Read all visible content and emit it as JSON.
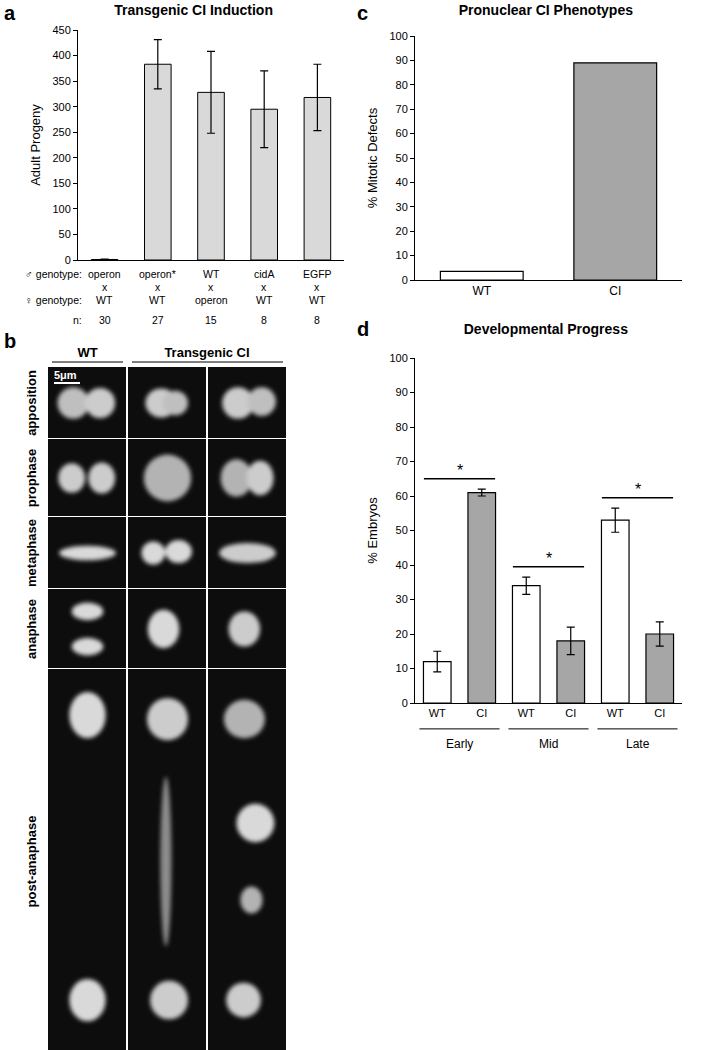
{
  "chart_data": [
    {
      "panel": "a",
      "type": "bar",
      "title": "Transgenic CI Induction",
      "y_label": "Adult Progeny",
      "categories": [
        "operon",
        "operon*",
        "WT",
        "cidA",
        "EGFP"
      ],
      "female_genotype": [
        "WT",
        "WT",
        "operon",
        "WT",
        "WT"
      ],
      "cross": "x",
      "n": [
        30,
        27,
        15,
        8,
        8
      ],
      "row_labels": [
        "♂ genotype:",
        "♀ genotype:",
        "n:"
      ],
      "values": [
        1,
        383,
        328,
        295,
        318
      ],
      "errors": [
        1,
        48,
        80,
        75,
        65
      ],
      "color": "#d9d9d9",
      "ylim": [
        0,
        450
      ],
      "yticks": [
        0,
        50,
        100,
        150,
        200,
        250,
        300,
        350,
        400,
        450
      ],
      "grid": false
    },
    {
      "panel": "c",
      "type": "bar",
      "title": "Pronuclear CI Phenotypes",
      "y_label": "% Mitotic Defects",
      "categories": [
        "WT",
        "CI"
      ],
      "values": [
        3.5,
        89
      ],
      "colors": [
        "#ffffff",
        "#a6a6a6"
      ],
      "ylim": [
        0,
        100
      ],
      "yticks": [
        0,
        10,
        20,
        30,
        40,
        50,
        60,
        70,
        80,
        90,
        100
      ],
      "grid": false
    },
    {
      "panel": "d",
      "type": "bar",
      "title": "Developmental Progress",
      "y_label": "% Embryos",
      "categories": [
        "WT",
        "CI",
        "WT",
        "CI",
        "WT",
        "CI"
      ],
      "group_labels": [
        "Early",
        "Mid",
        "Late"
      ],
      "values": [
        12,
        61,
        34,
        18,
        53,
        20
      ],
      "errors": [
        3,
        1,
        2.5,
        4,
        3.5,
        3.5
      ],
      "colors": [
        "#ffffff",
        "#a6a6a6",
        "#ffffff",
        "#a6a6a6",
        "#ffffff",
        "#a6a6a6"
      ],
      "annotations": [
        "*",
        "*",
        "*"
      ],
      "ylim": [
        0,
        100
      ],
      "yticks": [
        0,
        10,
        20,
        30,
        40,
        50,
        60,
        70,
        80,
        90,
        100
      ],
      "grid": false
    }
  ],
  "image_panel": {
    "panel": "b",
    "columns": [
      "WT",
      "Transgenic CI"
    ],
    "rows": [
      "apposition",
      "prophase",
      "metaphase",
      "anaphase",
      "post-anaphase"
    ],
    "scale_bar": "5μm"
  }
}
